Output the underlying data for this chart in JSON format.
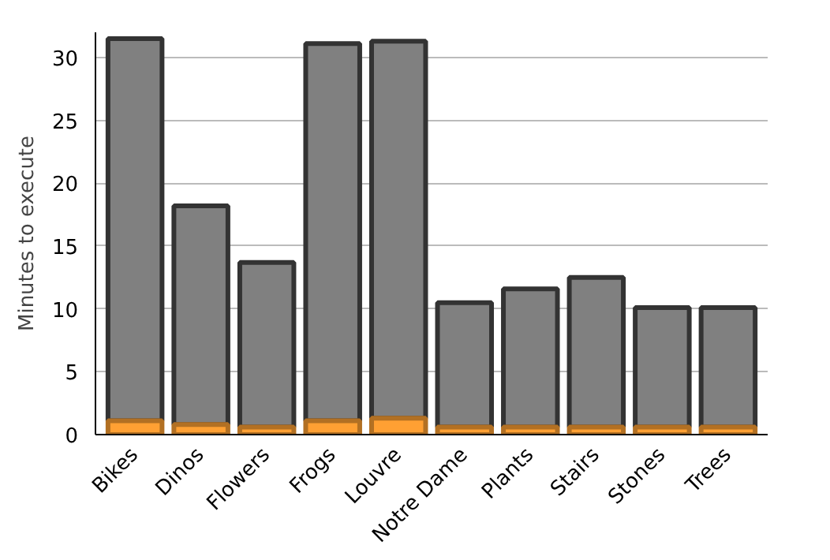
{
  "chart_data": {
    "type": "bar",
    "ylabel": "Minutes to execute",
    "stacked": true,
    "categories": [
      "Bikes",
      "Dinos",
      "Flowers",
      "Frogs",
      "Louvre",
      "Notre Dame",
      "Plants",
      "Stairs",
      "Stones",
      "Trees"
    ],
    "series": [
      {
        "color": "#ffa033",
        "values": [
          1.1,
          0.8,
          0.6,
          1.1,
          1.3,
          0.6,
          0.6,
          0.6,
          0.6,
          0.6
        ]
      },
      {
        "color": "#808080",
        "values": [
          30.4,
          17.4,
          13.1,
          30.0,
          30.0,
          9.9,
          11.0,
          11.9,
          9.5,
          9.5
        ]
      }
    ],
    "ylim": [
      0,
      32
    ],
    "yticks": [
      0,
      5,
      10,
      15,
      20,
      25,
      30
    ],
    "grid": "y"
  }
}
